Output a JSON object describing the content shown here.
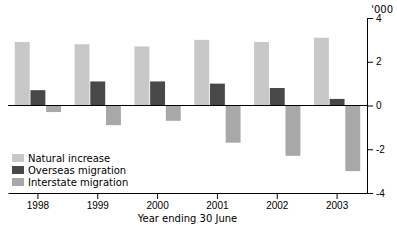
{
  "chart_data": {
    "type": "bar",
    "categories": [
      "1998",
      "1999",
      "2000",
      "2001",
      "2002",
      "2003"
    ],
    "series": [
      {
        "name": "Natural increase",
        "color": "#c8c8c8",
        "values": [
          2.9,
          2.8,
          2.7,
          3.0,
          2.9,
          3.1
        ]
      },
      {
        "name": "Overseas migration",
        "color": "#484848",
        "values": [
          0.7,
          1.1,
          1.1,
          1.0,
          0.8,
          0.3
        ]
      },
      {
        "name": "Interstate migration",
        "color": "#a8a8a8",
        "values": [
          -0.3,
          -0.9,
          -0.7,
          -1.7,
          -2.3,
          -3.0
        ]
      }
    ],
    "ylim": [
      -4,
      4
    ],
    "yticks": [
      -4,
      -2,
      0,
      2,
      4
    ],
    "xlabel": "Year ending 30 June",
    "ylabel": "'000",
    "legend": "lower left",
    "grid": false
  }
}
